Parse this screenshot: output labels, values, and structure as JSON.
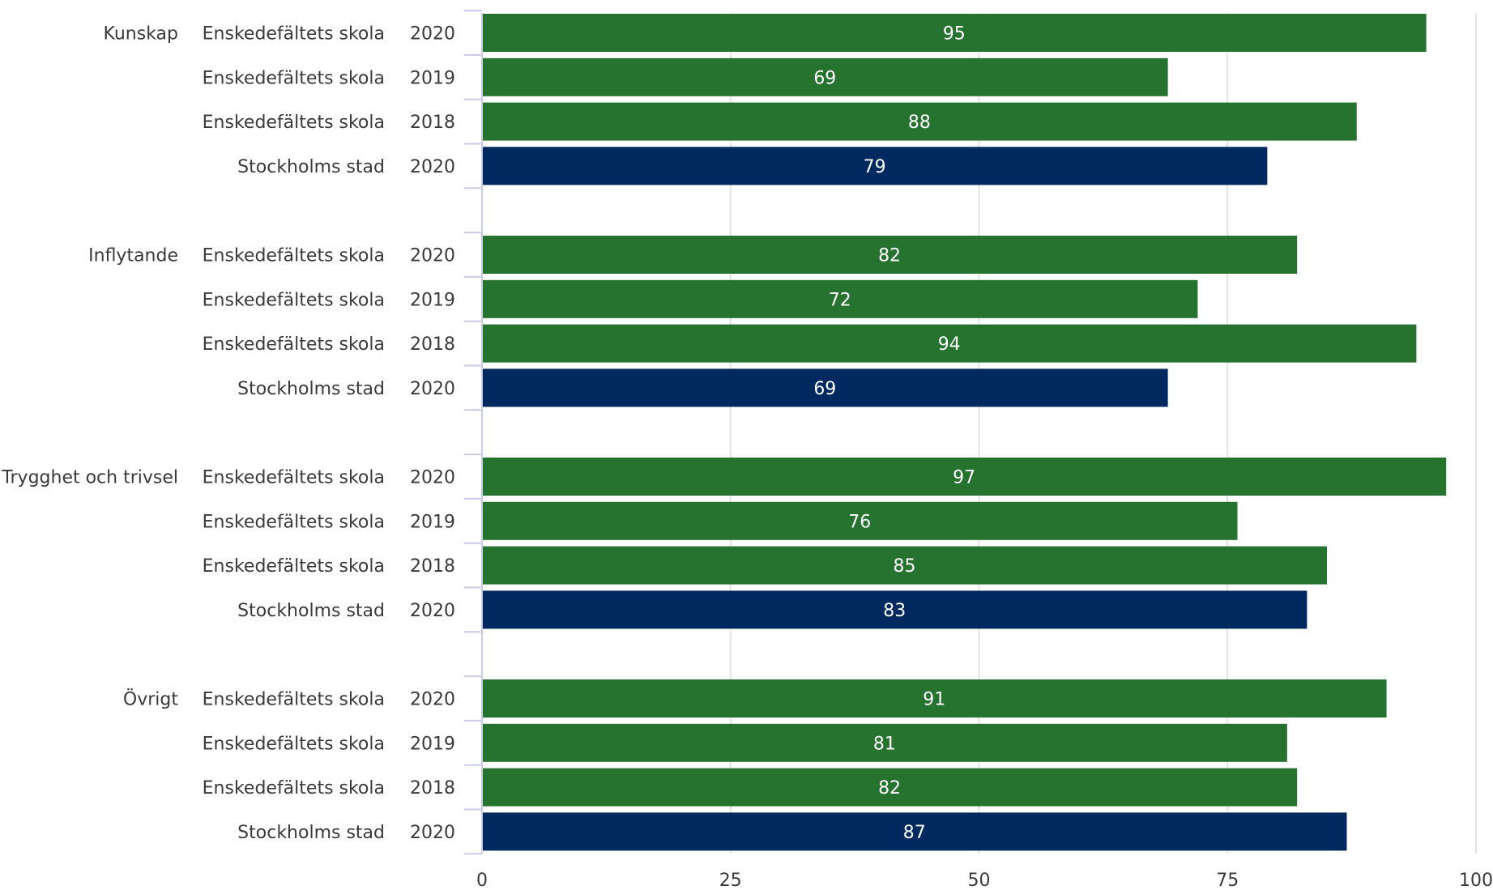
{
  "chart_data": {
    "type": "bar",
    "orientation": "horizontal",
    "xlim": [
      0,
      100
    ],
    "xticks": [
      0,
      25,
      50,
      75,
      100
    ],
    "grid": true,
    "colors": {
      "school": "#267330",
      "city": "#002a5f"
    },
    "groups": [
      {
        "name": "Kunskap",
        "bars": [
          {
            "entity": "Enskedefältets skola",
            "year": "2020",
            "value": 95,
            "kind": "school"
          },
          {
            "entity": "Enskedefältets skola",
            "year": "2019",
            "value": 69,
            "kind": "school"
          },
          {
            "entity": "Enskedefältets skola",
            "year": "2018",
            "value": 88,
            "kind": "school"
          },
          {
            "entity": "Stockholms stad",
            "year": "2020",
            "value": 79,
            "kind": "city"
          }
        ]
      },
      {
        "name": "Inflytande",
        "bars": [
          {
            "entity": "Enskedefältets skola",
            "year": "2020",
            "value": 82,
            "kind": "school"
          },
          {
            "entity": "Enskedefältets skola",
            "year": "2019",
            "value": 72,
            "kind": "school"
          },
          {
            "entity": "Enskedefältets skola",
            "year": "2018",
            "value": 94,
            "kind": "school"
          },
          {
            "entity": "Stockholms stad",
            "year": "2020",
            "value": 69,
            "kind": "city"
          }
        ]
      },
      {
        "name": "Trygghet och trivsel",
        "bars": [
          {
            "entity": "Enskedefältets skola",
            "year": "2020",
            "value": 97,
            "kind": "school"
          },
          {
            "entity": "Enskedefältets skola",
            "year": "2019",
            "value": 76,
            "kind": "school"
          },
          {
            "entity": "Enskedefältets skola",
            "year": "2018",
            "value": 85,
            "kind": "school"
          },
          {
            "entity": "Stockholms stad",
            "year": "2020",
            "value": 83,
            "kind": "city"
          }
        ]
      },
      {
        "name": "Övrigt",
        "bars": [
          {
            "entity": "Enskedefältets skola",
            "year": "2020",
            "value": 91,
            "kind": "school"
          },
          {
            "entity": "Enskedefältets skola",
            "year": "2019",
            "value": 81,
            "kind": "school"
          },
          {
            "entity": "Enskedefältets skola",
            "year": "2018",
            "value": 82,
            "kind": "school"
          },
          {
            "entity": "Stockholms stad",
            "year": "2020",
            "value": 87,
            "kind": "city"
          }
        ]
      }
    ]
  }
}
